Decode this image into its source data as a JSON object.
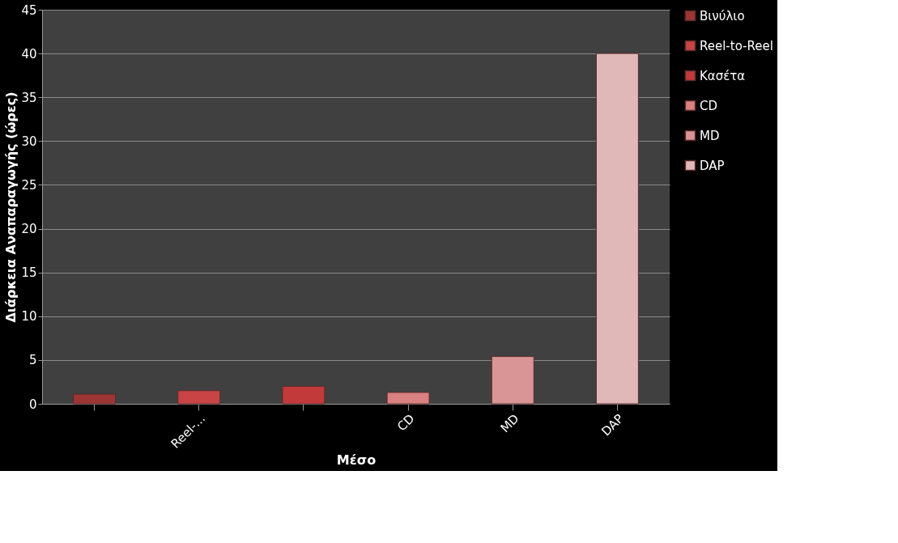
{
  "chart_data": {
    "type": "bar",
    "xlabel": "Μέσο",
    "ylabel": "Διάρκεια Αναπαραγωγής (ώρες)",
    "categories": [
      null,
      "Reel-...",
      null,
      "CD",
      "MD",
      "DAP"
    ],
    "series": [
      {
        "name": "Βινύλιο",
        "color": "#9e3535",
        "values": [
          1.1,
          null,
          null,
          null,
          null,
          null
        ]
      },
      {
        "name": "Reel-to-Reel",
        "color": "#c94444",
        "values": [
          null,
          1.5,
          null,
          null,
          null,
          null
        ]
      },
      {
        "name": "Κασέτα",
        "color": "#c23a3a",
        "values": [
          null,
          null,
          2,
          null,
          null,
          null
        ]
      },
      {
        "name": "CD",
        "color": "#d98080",
        "values": [
          null,
          null,
          null,
          1.3,
          null,
          null
        ]
      },
      {
        "name": "MD",
        "color": "#d99595",
        "values": [
          null,
          null,
          null,
          null,
          5.4,
          null
        ]
      },
      {
        "name": "DAP",
        "color": "#e0b8b8",
        "values": [
          null,
          null,
          null,
          null,
          null,
          40
        ]
      }
    ],
    "ylim": [
      0,
      45
    ],
    "yticks": [
      0,
      5,
      10,
      15,
      20,
      25,
      30,
      35,
      40,
      45
    ],
    "grid": "y",
    "legend": "right"
  }
}
